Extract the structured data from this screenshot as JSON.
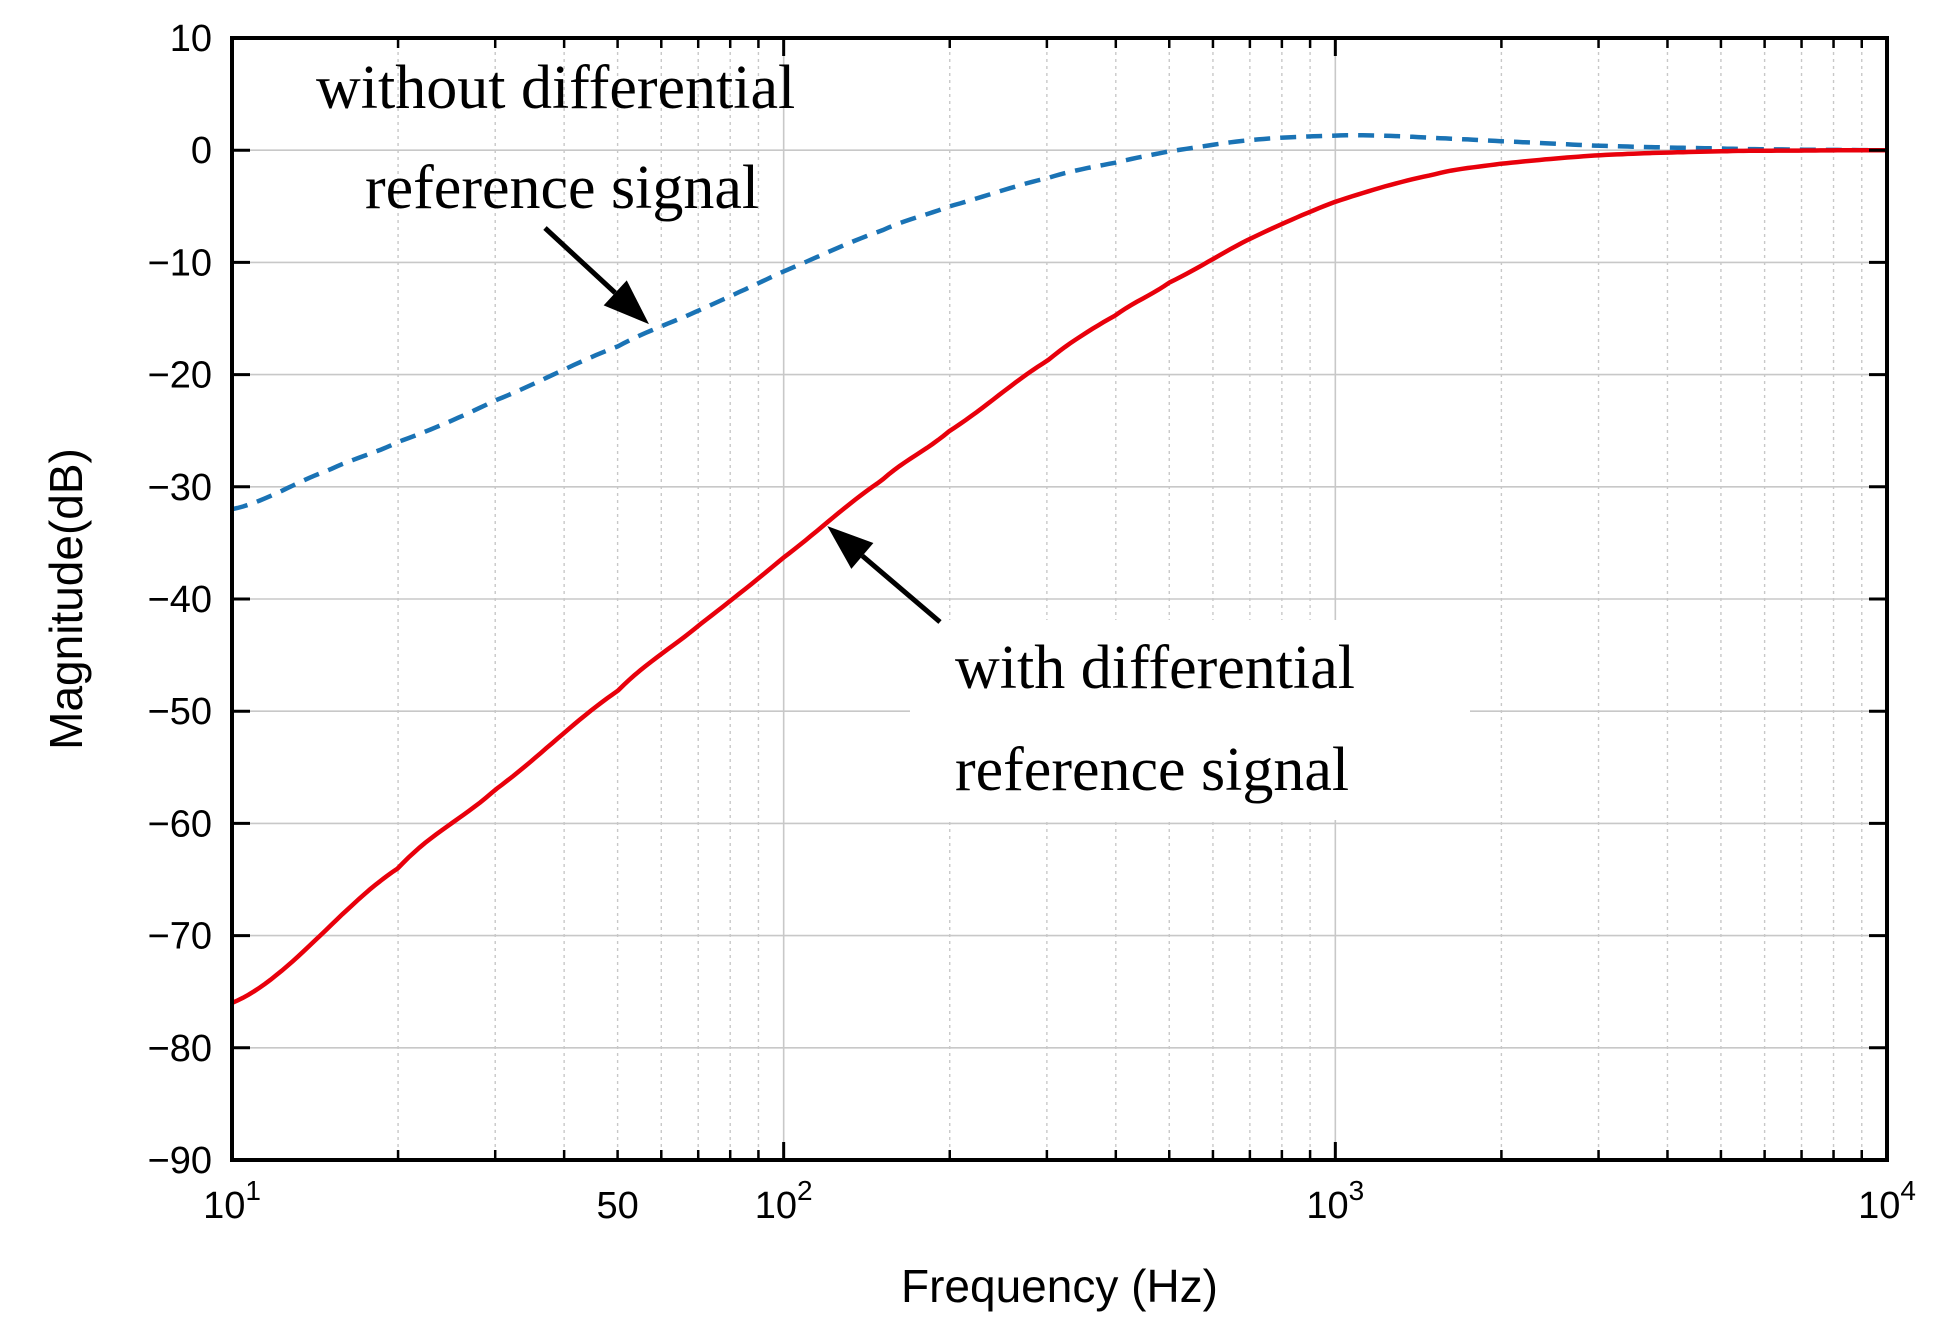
{
  "chart_data": {
    "type": "line",
    "xlabel": "Frequency  (Hz)",
    "ylabel": "Magnitude(dB)",
    "xscale": "log",
    "xlim": [
      10,
      10000
    ],
    "ylim": [
      -90,
      10
    ],
    "grid": true,
    "x_ticks": [
      {
        "value": 10,
        "base": "10",
        "exp": "1"
      },
      {
        "value": 50,
        "base": "50",
        "exp": ""
      },
      {
        "value": 100,
        "base": "10",
        "exp": "2"
      },
      {
        "value": 1000,
        "base": "10",
        "exp": "3"
      },
      {
        "value": 10000,
        "base": "10",
        "exp": "4"
      }
    ],
    "y_ticks": [
      10,
      0,
      -10,
      -20,
      -30,
      -40,
      -50,
      -60,
      -70,
      -80,
      -90
    ],
    "y_tick_labels": [
      "10",
      "0",
      "−10",
      "−20",
      "−30",
      "−40",
      "−50",
      "−60",
      "−70",
      "−80",
      "−90"
    ],
    "series": [
      {
        "name": "without differential reference signal",
        "style": "dashed",
        "color": "#1a73b5",
        "x": [
          10,
          15,
          20,
          30,
          50,
          70,
          100,
          150,
          200,
          300,
          400,
          500,
          700,
          1000,
          1200,
          1500,
          2000,
          3000,
          5000,
          7000,
          10000
        ],
        "y": [
          -32,
          -28.5,
          -26,
          -22.3,
          -17.5,
          -14.3,
          -10.8,
          -7.2,
          -5,
          -2.5,
          -1.1,
          -0.1,
          0.9,
          1.3,
          1.3,
          1.1,
          0.8,
          0.4,
          0.15,
          0.05,
          0
        ]
      },
      {
        "name": "with differential reference signal",
        "style": "solid",
        "color": "#e8000b",
        "x": [
          10,
          20,
          30,
          50,
          70,
          100,
          150,
          200,
          300,
          400,
          500,
          700,
          1000,
          1500,
          2000,
          3000,
          5000,
          7000,
          10000
        ],
        "y": [
          -76,
          -64,
          -57,
          -48.2,
          -42.4,
          -36.3,
          -29.5,
          -25,
          -18.8,
          -14.7,
          -11.8,
          -7.9,
          -4.6,
          -2.2,
          -1.2,
          -0.45,
          -0.1,
          -0.03,
          0
        ]
      }
    ],
    "annotations": [
      {
        "lines": [
          "without differential",
          "reference signal"
        ],
        "target": "without differential reference signal",
        "arrow_to": {
          "x": 57,
          "y": -15.5
        }
      },
      {
        "lines": [
          "with differential",
          "reference signal"
        ],
        "target": "with differential reference signal",
        "arrow_to": {
          "x": 120,
          "y": -33.5
        }
      }
    ]
  }
}
